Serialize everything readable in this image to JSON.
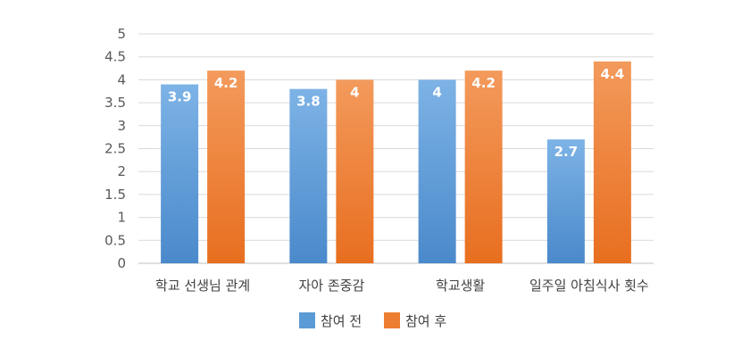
{
  "chart_data": {
    "type": "bar",
    "categories": [
      "학교 선생님 관계",
      "자아 존중감",
      "학교생활",
      "일주일 아침식사 횟수"
    ],
    "series": [
      {
        "name": "참여 전",
        "values": [
          3.9,
          3.8,
          4,
          2.7
        ],
        "labels": [
          "3.9",
          "3.8",
          "4",
          "2.7"
        ],
        "color": "#5B9BD5",
        "gradient": [
          "#7DB3E6",
          "#4A89CB"
        ]
      },
      {
        "name": "참여 후",
        "values": [
          4.2,
          4,
          4.2,
          4.4
        ],
        "labels": [
          "4.2",
          "4",
          "4.2",
          "4.4"
        ],
        "color": "#ED7D31",
        "gradient": [
          "#F39A5C",
          "#E86E1F"
        ]
      }
    ],
    "ylim": [
      0,
      5
    ],
    "yticks": [
      "0",
      "0.5",
      "1",
      "1.5",
      "2",
      "2.5",
      "3",
      "3.5",
      "4",
      "4.5",
      "5"
    ],
    "grid": true,
    "gridColor": "#D9D9D9",
    "legend": "bottom"
  }
}
